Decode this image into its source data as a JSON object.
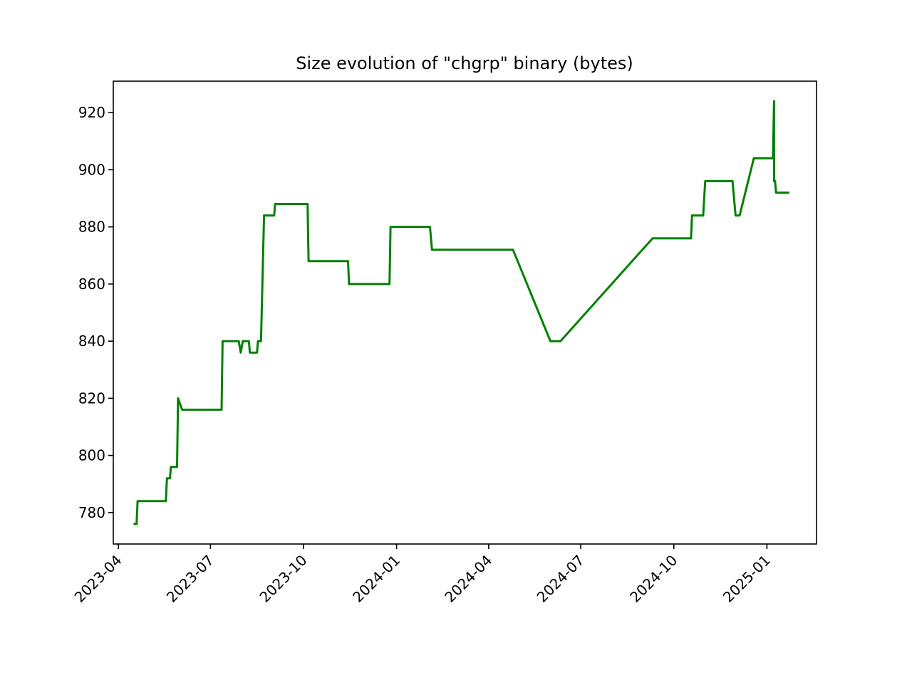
{
  "chart_data": {
    "type": "line",
    "title": "Size evolution of \"chgrp\" binary (bytes)",
    "xlabel": "",
    "ylabel": "",
    "x_axis_type": "date",
    "xlim": [
      "2023-03-27",
      "2025-02-19"
    ],
    "ylim": [
      769,
      931
    ],
    "grid": false,
    "line_color": "#008000",
    "x_ticks": [
      "2023-04",
      "2023-07",
      "2023-10",
      "2024-01",
      "2024-04",
      "2024-07",
      "2024-10",
      "2025-01"
    ],
    "y_ticks": [
      780,
      800,
      820,
      840,
      860,
      880,
      900,
      920
    ],
    "series": [
      {
        "points": [
          [
            "2023-04-16",
            776
          ],
          [
            "2023-04-19",
            776
          ],
          [
            "2023-04-20",
            784
          ],
          [
            "2023-05-18",
            784
          ],
          [
            "2023-05-19",
            792
          ],
          [
            "2023-05-22",
            792
          ],
          [
            "2023-05-23",
            796
          ],
          [
            "2023-05-29",
            796
          ],
          [
            "2023-05-30",
            820
          ],
          [
            "2023-06-03",
            816
          ],
          [
            "2023-07-12",
            816
          ],
          [
            "2023-07-13",
            840
          ],
          [
            "2023-07-29",
            840
          ],
          [
            "2023-07-31",
            836
          ],
          [
            "2023-08-02",
            840
          ],
          [
            "2023-08-08",
            840
          ],
          [
            "2023-08-09",
            836
          ],
          [
            "2023-08-16",
            836
          ],
          [
            "2023-08-17",
            840
          ],
          [
            "2023-08-20",
            840
          ],
          [
            "2023-08-23",
            884
          ],
          [
            "2023-09-02",
            884
          ],
          [
            "2023-09-03",
            888
          ],
          [
            "2023-10-05",
            888
          ],
          [
            "2023-10-06",
            868
          ],
          [
            "2023-11-14",
            868
          ],
          [
            "2023-11-15",
            860
          ],
          [
            "2023-12-25",
            860
          ],
          [
            "2023-12-26",
            880
          ],
          [
            "2024-02-03",
            880
          ],
          [
            "2024-02-05",
            872
          ],
          [
            "2024-04-25",
            872
          ],
          [
            "2024-06-01",
            840
          ],
          [
            "2024-06-11",
            840
          ],
          [
            "2024-09-10",
            876
          ],
          [
            "2024-10-18",
            876
          ],
          [
            "2024-10-19",
            884
          ],
          [
            "2024-10-30",
            884
          ],
          [
            "2024-11-01",
            896
          ],
          [
            "2024-11-28",
            896
          ],
          [
            "2024-12-01",
            884
          ],
          [
            "2024-12-05",
            884
          ],
          [
            "2024-12-19",
            904
          ],
          [
            "2025-01-07",
            904
          ],
          [
            "2025-01-08",
            924
          ],
          [
            "2025-01-08",
            896
          ],
          [
            "2025-01-09",
            896
          ],
          [
            "2025-01-10",
            892
          ],
          [
            "2025-01-23",
            892
          ]
        ]
      }
    ]
  }
}
